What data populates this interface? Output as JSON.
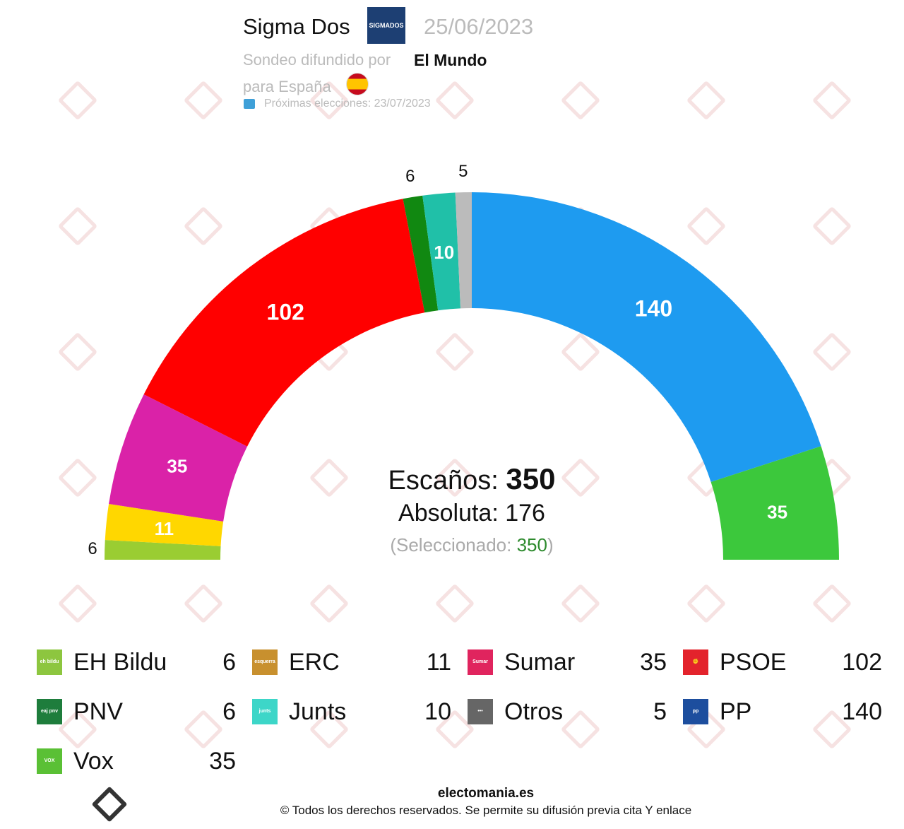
{
  "header": {
    "pollster": "Sigma Dos",
    "pollster_logo_text": "SIGMADOS",
    "date": "25/06/2023",
    "spread_by_label": "Sondeo difundido por",
    "media": "El Mundo",
    "region_label": "para España",
    "next_elections": "Próximas elecciones: 23/07/2023"
  },
  "watermark": "Electomania",
  "center": {
    "seats_label": "Escaños:",
    "seats_total": "350",
    "majority_label": "Absoluta: 176",
    "selected_open": "(Seleccionado: ",
    "selected_value": "350",
    "selected_close": ")"
  },
  "chart_data": {
    "type": "pie",
    "subtype": "hemicycle",
    "total_seats": 350,
    "majority": 176,
    "parties": [
      {
        "name": "EH Bildu",
        "seats": 6,
        "color": "#9acd32",
        "label_outside": true
      },
      {
        "name": "ERC",
        "seats": 11,
        "color": "#ffd700",
        "label_outside": false
      },
      {
        "name": "Sumar",
        "seats": 35,
        "color": "#da22a8",
        "label_outside": false
      },
      {
        "name": "PSOE",
        "seats": 102,
        "color": "#ff0000",
        "label_outside": false
      },
      {
        "name": "PNV",
        "seats": 6,
        "color": "#118811",
        "label_outside": true
      },
      {
        "name": "Junts",
        "seats": 10,
        "color": "#20c0a8",
        "label_outside": false
      },
      {
        "name": "Otros",
        "seats": 5,
        "color": "#bbbbbb",
        "label_outside": true
      },
      {
        "name": "PP",
        "seats": 140,
        "color": "#1e9bf0",
        "label_outside": false
      },
      {
        "name": "Vox",
        "seats": 35,
        "color": "#3cc83c",
        "label_outside": false
      }
    ]
  },
  "legend": [
    {
      "name": "EH Bildu",
      "seats": "6",
      "icon": "eh-bildu-logo",
      "icon_text": "eh bildu",
      "color": "#8dc63f"
    },
    {
      "name": "ERC",
      "seats": "11",
      "icon": "erc-logo",
      "icon_text": "esquerra",
      "color": "#c8902e"
    },
    {
      "name": "Sumar",
      "seats": "35",
      "icon": "sumar-logo",
      "icon_text": "Sumar",
      "color": "#e0245e"
    },
    {
      "name": "PSOE",
      "seats": "102",
      "icon": "psoe-logo",
      "icon_text": "✊",
      "color": "#e3232c"
    },
    {
      "name": "PNV",
      "seats": "6",
      "icon": "pnv-logo",
      "icon_text": "eaj pnv",
      "color": "#1e7d3c"
    },
    {
      "name": "Junts",
      "seats": "10",
      "icon": "junts-logo",
      "icon_text": "junts",
      "color": "#3dd6c8"
    },
    {
      "name": "Otros",
      "seats": "5",
      "icon": "others-logo",
      "icon_text": "•••",
      "color": "#666666"
    },
    {
      "name": "PP",
      "seats": "140",
      "icon": "pp-logo",
      "icon_text": "pp",
      "color": "#1d4e9e"
    },
    {
      "name": "Vox",
      "seats": "35",
      "icon": "vox-logo",
      "icon_text": "VOX",
      "color": "#5ac035"
    }
  ],
  "footer": {
    "site": "electomania.es",
    "copyright": "© Todos los derechos reservados. Se permite su difusión previa cita Y enlace"
  }
}
